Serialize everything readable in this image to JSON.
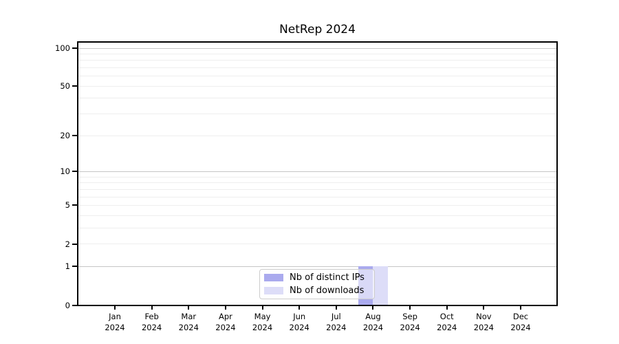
{
  "chart_data": {
    "type": "bar",
    "title": "NetRep 2024",
    "categories": [
      "Jan",
      "Feb",
      "Mar",
      "Apr",
      "May",
      "Jun",
      "Jul",
      "Aug",
      "Sep",
      "Oct",
      "Nov",
      "Dec"
    ],
    "category_year": "2024",
    "series": [
      {
        "name": "Nb of distinct IPs",
        "color": "#aaaaee",
        "values": [
          0,
          0,
          0,
          0,
          0,
          0,
          0,
          1,
          0,
          0,
          0,
          0
        ]
      },
      {
        "name": "Nb of downloads",
        "color": "#ddddf8",
        "values": [
          0,
          0,
          0,
          0,
          0,
          0,
          0,
          1,
          0,
          0,
          0,
          0
        ]
      }
    ],
    "y_axis": {
      "scale": "log1p",
      "tick_values": [
        0,
        1,
        2,
        5,
        10,
        20,
        50,
        100
      ],
      "major_gridlines": [
        1,
        10,
        100
      ],
      "minor_gridlines": [
        2,
        3,
        4,
        5,
        6,
        7,
        8,
        9,
        20,
        30,
        40,
        50,
        60,
        70,
        80,
        90
      ],
      "ylim": [
        0,
        112
      ]
    },
    "legend": {
      "position": "lower-center",
      "entries": [
        "Nb of distinct IPs",
        "Nb of downloads"
      ]
    },
    "colors": {
      "axis": "#000000",
      "major_grid": "#c6c6c6",
      "minor_grid": "#eeeeee",
      "text": "#000000",
      "legend_border": "#cccccc"
    }
  }
}
